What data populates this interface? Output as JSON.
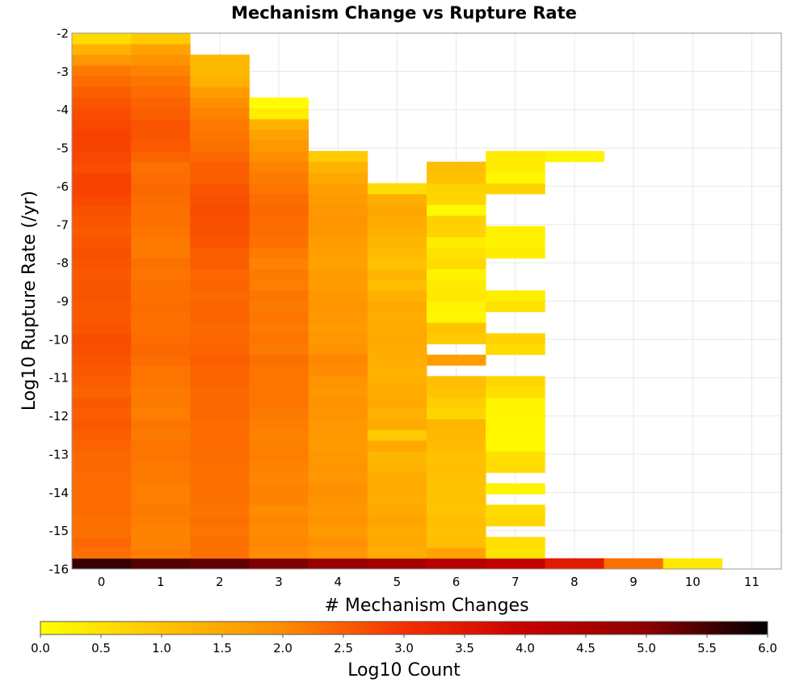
{
  "chart_data": {
    "type": "heatmap",
    "title": "Mechanism Change vs Rupture Rate",
    "xlabel": "# Mechanism Changes",
    "ylabel": "Log10 Rupture Rate (/yr)",
    "colorbar_label": "Log10 Count",
    "xlim": [
      -0.5,
      11.5
    ],
    "ylim": [
      -16,
      -2
    ],
    "x_ticks": [
      0,
      1,
      2,
      3,
      4,
      5,
      6,
      7,
      8,
      9,
      10,
      11
    ],
    "y_ticks": [
      -2,
      -3,
      -4,
      -5,
      -6,
      -7,
      -8,
      -9,
      -10,
      -11,
      -12,
      -13,
      -14,
      -15,
      -16
    ],
    "colorbar_ticks": [
      "0.0",
      "0.5",
      "1.0",
      "1.5",
      "2.0",
      "2.5",
      "3.0",
      "3.5",
      "4.0",
      "4.5",
      "5.0",
      "5.5",
      "6.0"
    ],
    "colorbar_range": [
      0,
      6
    ],
    "colormap": [
      "#ffff00",
      "#ffc400",
      "#ff8c00",
      "#f53000",
      "#c80000",
      "#8c0000",
      "#000000"
    ],
    "bin_height": 0.28,
    "y_start": -16,
    "grid": true,
    "columns": [
      {
        "x": 0,
        "values": [
          5.6,
          2.3,
          2.4,
          2.3,
          2.3,
          2.35,
          2.35,
          2.35,
          2.35,
          2.4,
          2.4,
          2.45,
          2.5,
          2.55,
          2.5,
          2.55,
          2.45,
          2.5,
          2.55,
          2.6,
          2.65,
          2.7,
          2.6,
          2.55,
          2.55,
          2.6,
          2.6,
          2.55,
          2.6,
          2.65,
          2.6,
          2.55,
          2.6,
          2.65,
          2.75,
          2.8,
          2.8,
          2.7,
          2.75,
          2.8,
          2.8,
          2.75,
          2.7,
          2.6,
          2.5,
          2.35,
          2.2,
          1.8,
          1.3,
          0.6
        ]
      },
      {
        "x": 1,
        "values": [
          5.4,
          2.15,
          2.1,
          2.1,
          2.15,
          2.2,
          2.15,
          2.15,
          2.2,
          2.2,
          2.25,
          2.25,
          2.2,
          2.25,
          2.15,
          2.2,
          2.2,
          2.25,
          2.25,
          2.35,
          2.4,
          2.35,
          2.3,
          2.3,
          2.35,
          2.3,
          2.3,
          2.25,
          2.3,
          2.2,
          2.2,
          2.25,
          2.3,
          2.3,
          2.35,
          2.4,
          2.35,
          2.3,
          2.45,
          2.55,
          2.6,
          2.6,
          2.5,
          2.45,
          2.35,
          2.25,
          2.1,
          1.9,
          1.6,
          0.9
        ]
      },
      {
        "x": 2,
        "values": [
          5.3,
          2.3,
          2.3,
          2.25,
          2.3,
          2.25,
          2.3,
          2.3,
          2.3,
          2.3,
          2.35,
          2.35,
          2.35,
          2.35,
          2.4,
          2.4,
          2.4,
          2.45,
          2.45,
          2.5,
          2.45,
          2.4,
          2.4,
          2.45,
          2.45,
          2.4,
          2.45,
          2.4,
          2.5,
          2.5,
          2.6,
          2.65,
          2.65,
          2.7,
          2.65,
          2.6,
          2.5,
          2.5,
          2.4,
          2.3,
          2.25,
          2.2,
          2.1,
          1.95,
          1.7,
          1.35,
          1.2,
          1.2
        ]
      },
      {
        "x": 3,
        "values": [
          5.1,
          2.0,
          2.05,
          2.0,
          2.05,
          2.0,
          2.1,
          2.1,
          2.05,
          2.1,
          2.15,
          2.15,
          2.1,
          2.15,
          2.2,
          2.25,
          2.25,
          2.25,
          2.25,
          2.3,
          2.2,
          2.25,
          2.2,
          2.25,
          2.2,
          2.25,
          2.15,
          2.2,
          2.1,
          2.2,
          2.3,
          2.35,
          2.35,
          2.4,
          2.35,
          2.25,
          2.2,
          2.1,
          1.95,
          1.8,
          1.6,
          1.3,
          0.3,
          0.05
        ]
      },
      {
        "x": 4,
        "values": [
          4.8,
          1.8,
          1.9,
          1.75,
          1.85,
          1.8,
          1.9,
          1.95,
          1.8,
          1.85,
          1.8,
          1.75,
          1.8,
          1.8,
          1.85,
          1.9,
          1.8,
          1.85,
          2.0,
          2.05,
          1.9,
          1.8,
          1.75,
          1.8,
          1.85,
          1.8,
          1.7,
          1.75,
          1.6,
          1.65,
          1.7,
          1.8,
          1.85,
          1.8,
          1.75,
          1.65,
          1.5,
          1.3,
          0.9
        ]
      },
      {
        "x": 5,
        "values": [
          4.6,
          1.45,
          1.5,
          1.45,
          1.55,
          1.5,
          1.4,
          1.45,
          1.45,
          1.3,
          1.25,
          1.5,
          0.9,
          1.45,
          1.35,
          1.5,
          1.45,
          1.4,
          1.35,
          1.4,
          1.45,
          1.5,
          1.45,
          1.4,
          1.5,
          1.35,
          1.1,
          1.25,
          1.05,
          1.15,
          1.25,
          1.35,
          1.45,
          1.55,
          1.4,
          0.6
        ]
      },
      {
        "x": 6,
        "values": [
          4.3,
          1.6,
          1.1,
          1.05,
          1.1,
          1.0,
          1.05,
          1.0,
          1.05,
          1.1,
          1.05,
          1.15,
          1.2,
          1.25,
          0.7,
          0.85,
          1.0,
          1.1,
          null,
          1.7,
          null,
          0.9,
          1.0,
          0.15,
          0.2,
          0.4,
          0.35,
          0.2,
          0.6,
          0.5,
          0.3,
          0.75,
          0.8,
          0.1,
          0.7,
          0.75,
          1.05,
          1.1
        ]
      },
      {
        "x": 7,
        "values": [
          4.1,
          0.5,
          0.55,
          null,
          0.7,
          0.6,
          null,
          0.2,
          null,
          0.6,
          0.55,
          0.1,
          0.15,
          0.15,
          0.15,
          0.2,
          0.55,
          0.7,
          null,
          null,
          0.6,
          0.75,
          null,
          null,
          0.5,
          0.3,
          null,
          null,
          null,
          0.3,
          0.2,
          0.25,
          null,
          null,
          null,
          0.75,
          0.15,
          0.3,
          0.35
        ]
      },
      {
        "x": 8,
        "values": [
          3.45,
          null,
          null,
          null,
          null,
          null,
          null,
          null,
          null,
          null,
          null,
          null,
          null,
          null,
          null,
          null,
          null,
          null,
          null,
          null,
          null,
          null,
          null,
          null,
          null,
          null,
          null,
          null,
          null,
          null,
          null,
          null,
          null,
          null,
          null,
          null,
          null,
          null,
          0.2
        ]
      },
      {
        "x": 9,
        "values": [
          2.3
        ]
      },
      {
        "x": 10,
        "values": [
          0.35
        ]
      }
    ]
  }
}
